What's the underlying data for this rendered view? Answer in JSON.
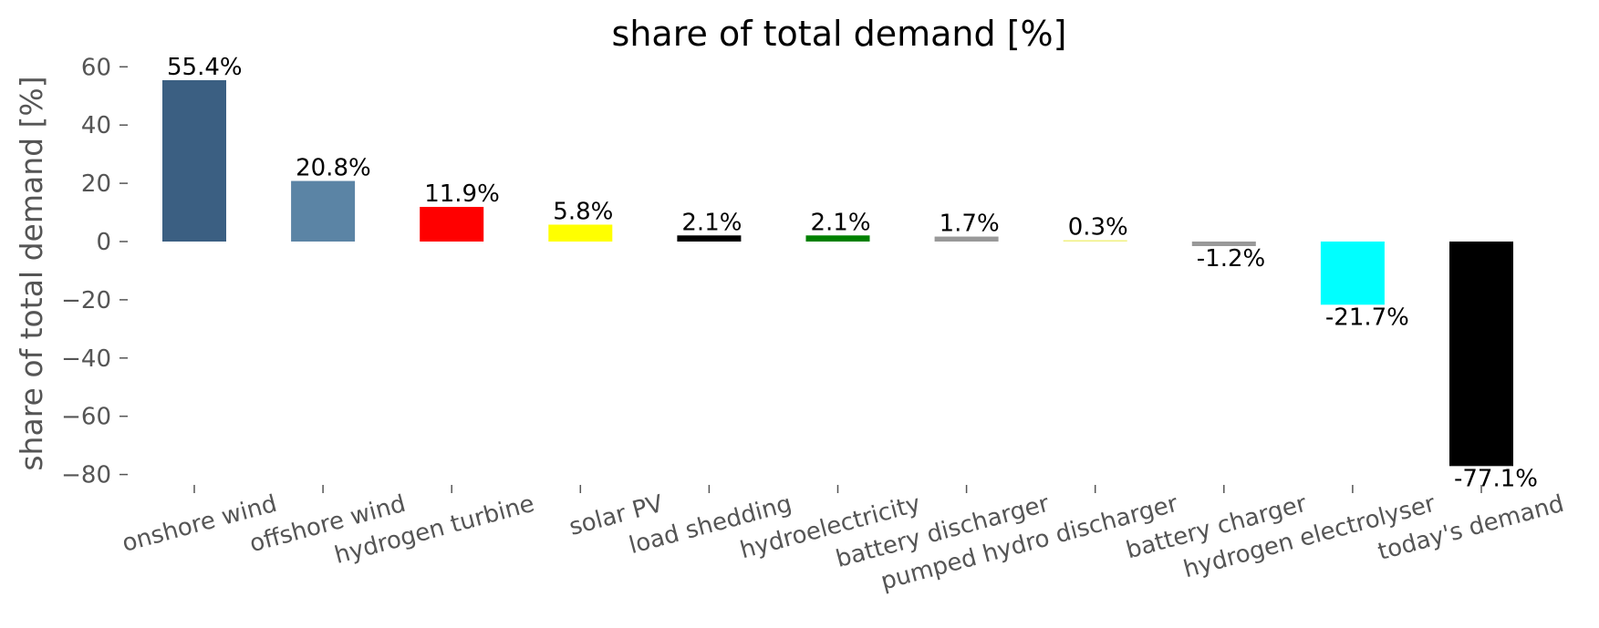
{
  "chart_data": {
    "type": "bar",
    "title": "share of total demand [%]",
    "xlabel": "",
    "ylabel": "share of total demand [%]",
    "ylim": [
      -85,
      63
    ],
    "yticks": [
      60,
      40,
      20,
      0,
      -20,
      -40,
      -60,
      -80
    ],
    "ytick_labels": [
      "60",
      "40",
      "20",
      "0",
      "−20",
      "−40",
      "−60",
      "−80"
    ],
    "grid": false,
    "categories": [
      "onshore wind",
      "offshore wind",
      "hydrogen turbine",
      "solar PV",
      "load shedding",
      "hydroelectricity",
      "battery discharger",
      "pumped hydro discharger",
      "battery charger",
      "hydrogen electrolyser",
      "today's demand"
    ],
    "values": [
      55.4,
      20.8,
      11.9,
      5.8,
      2.1,
      2.1,
      1.7,
      0.3,
      -1.2,
      -21.7,
      -77.1
    ],
    "data_labels": [
      "55.4%",
      "20.8%",
      "11.9%",
      "5.8%",
      "2.1%",
      "2.1%",
      "1.7%",
      "0.3%",
      "-1.2%",
      "-21.7%",
      "-77.1%"
    ],
    "colors": [
      "#3b5f82",
      "#5b84a5",
      "#ff0000",
      "#ffff00",
      "#000000",
      "#008000",
      "#999999",
      "#f0f080",
      "#999999",
      "#00ffff",
      "#000000"
    ]
  }
}
